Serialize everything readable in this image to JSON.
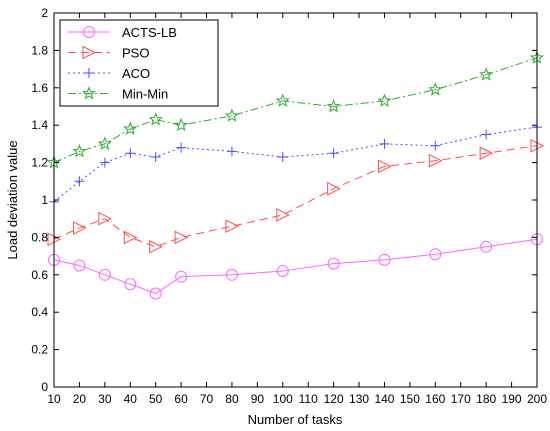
{
  "chart_data": {
    "type": "line",
    "xlabel": "Number of tasks",
    "ylabel": "Load deviation value",
    "xlim": [
      10,
      200
    ],
    "ylim": [
      0,
      2
    ],
    "xticks": [
      10,
      20,
      30,
      40,
      50,
      60,
      70,
      80,
      90,
      100,
      110,
      120,
      130,
      140,
      150,
      160,
      170,
      180,
      190,
      200
    ],
    "yticks": [
      0,
      0.2,
      0.4,
      0.6,
      0.8,
      1,
      1.2,
      1.4,
      1.6,
      1.8,
      2
    ],
    "ytick_labels": [
      "0",
      "0.2",
      "0.4",
      "0.6",
      "0.8",
      "1",
      "1.2",
      "1.4",
      "1.6",
      "1.8",
      "2"
    ],
    "grid": false,
    "legend_position": "top-left",
    "series": [
      {
        "name": "ACTS-LB",
        "color": "#ff66ff",
        "line_style": "solid",
        "marker": "circle",
        "x": [
          10,
          20,
          30,
          40,
          50,
          60,
          80,
          100,
          120,
          140,
          160,
          180,
          200
        ],
        "values": [
          0.68,
          0.65,
          0.6,
          0.55,
          0.5,
          0.59,
          0.6,
          0.62,
          0.66,
          0.68,
          0.71,
          0.75,
          0.79
        ]
      },
      {
        "name": "PSO",
        "color": "#ff4d4d",
        "line_style": "dashed",
        "marker": "triangle-right",
        "x": [
          10,
          20,
          30,
          40,
          50,
          60,
          80,
          100,
          120,
          140,
          160,
          180,
          200
        ],
        "values": [
          0.79,
          0.85,
          0.9,
          0.8,
          0.75,
          0.8,
          0.86,
          0.92,
          1.06,
          1.18,
          1.21,
          1.25,
          1.29
        ]
      },
      {
        "name": "ACO",
        "color": "#4d4dff",
        "line_style": "dotted",
        "marker": "plus",
        "x": [
          10,
          20,
          30,
          40,
          50,
          60,
          80,
          100,
          120,
          140,
          160,
          180,
          200
        ],
        "values": [
          0.99,
          1.1,
          1.2,
          1.25,
          1.23,
          1.28,
          1.26,
          1.23,
          1.25,
          1.3,
          1.29,
          1.35,
          1.39
        ]
      },
      {
        "name": "Min-Min",
        "color": "#33aa33",
        "line_style": "dashdot",
        "marker": "star",
        "x": [
          10,
          20,
          30,
          40,
          50,
          60,
          80,
          100,
          120,
          140,
          160,
          180,
          200
        ],
        "values": [
          1.2,
          1.26,
          1.3,
          1.38,
          1.43,
          1.4,
          1.45,
          1.53,
          1.5,
          1.53,
          1.59,
          1.67,
          1.76
        ]
      }
    ]
  }
}
